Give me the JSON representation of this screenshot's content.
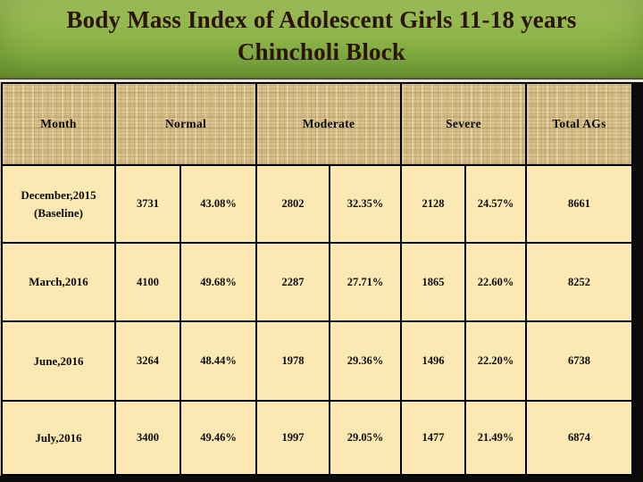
{
  "slide": {
    "title_line1": "Body Mass Index of Adolescent Girls 11-18 years",
    "title_line2": "Chincholi Block"
  },
  "table": {
    "column_headers": {
      "month": "Month",
      "normal": "Normal",
      "moderate": "Moderate",
      "severe": "Severe",
      "total": "Total AGs"
    },
    "rows": [
      {
        "month": "December,2015\n(Baseline)",
        "values": [
          "3731",
          "43.08%",
          "2802",
          "32.35%",
          "2128",
          "24.57%",
          "8661"
        ]
      },
      {
        "month": "March,2016",
        "values": [
          "4100",
          "49.68%",
          "2287",
          "27.71%",
          "1865",
          "22.60%",
          "8252"
        ]
      },
      {
        "month": "June,2016",
        "values": [
          "3264",
          "48.44%",
          "1978",
          "29.36%",
          "1496",
          "22.20%",
          "6738"
        ]
      },
      {
        "month": "July,2016",
        "values": [
          "3400",
          "49.46%",
          "1997",
          "29.05%",
          "1477",
          "21.49%",
          "6874"
        ]
      }
    ]
  },
  "colors": {
    "banner_green_top": "#acc963",
    "banner_green_bottom": "#6f9936",
    "title_text": "#2b1306",
    "header_cell_bg": "#d8c18b",
    "body_cell_bg": "#fce8b2",
    "grid_line": "#000000",
    "slide_edge": "#0b0b0b"
  }
}
